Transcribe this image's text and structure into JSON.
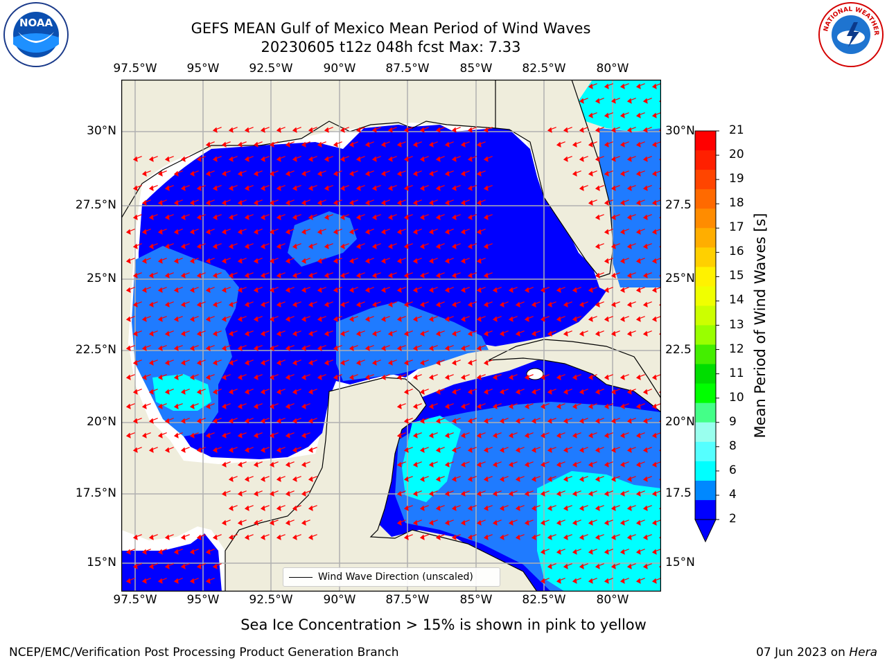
{
  "header": {
    "title_line1": "GEFS MEAN Gulf of Mexico Mean Period of Wind Waves",
    "title_line2": "20230605 t12z 048h fcst   Max: 7.33"
  },
  "map": {
    "region": "Gulf of Mexico",
    "lon_labels": [
      "97.5°W",
      "95°W",
      "92.5°W",
      "90°W",
      "87.5°W",
      "85°W",
      "82.5°W",
      "80°W"
    ],
    "lat_labels": [
      "30°N",
      "27.5°N",
      "25°N",
      "22.5°N",
      "20°N",
      "17.5°N",
      "15°N"
    ],
    "lat_labels_right": [
      "30°N",
      "27.5",
      "25°N",
      "22.5",
      "20°N",
      "17.5",
      "15°N"
    ],
    "colors": {
      "land": "#efeddc",
      "ocean_2_4": "#0000ff",
      "ocean_4_6": "#1f7bff",
      "ocean_6_8": "#00ffff",
      "arrows": "#ff0000",
      "grid": "#b0b0b0"
    },
    "legend_label": "Wind Wave Direction (unscaled)"
  },
  "colorbar": {
    "title": "Mean Period of Wind Waves [s]",
    "tick_labels": [
      "21",
      "20",
      "19",
      "18",
      "17",
      "16",
      "15",
      "14",
      "13",
      "12",
      "11",
      "10",
      "9",
      "8",
      "6",
      "4",
      "2"
    ],
    "colors": [
      "#ff0000",
      "#ff2000",
      "#ff4500",
      "#ff6a00",
      "#ff8c00",
      "#ffae00",
      "#ffd000",
      "#fff200",
      "#f0ff00",
      "#ccff00",
      "#99ff00",
      "#44ee00",
      "#00dd00",
      "#00ff00",
      "#44ff88",
      "#99ffee",
      "#55ffff",
      "#00ffff",
      "#0088ff",
      "#0000ff"
    ]
  },
  "subtitle": "Sea Ice Concentration > 15% is shown in pink to yellow",
  "footer": {
    "left": "NCEP/EMC/Verification Post Processing Product Generation Branch",
    "right_date": "07 Jun 2023 on ",
    "right_machine": "Hera"
  },
  "logos": {
    "left": "NOAA",
    "right": "NATIONAL WEATHER SERVICE"
  }
}
